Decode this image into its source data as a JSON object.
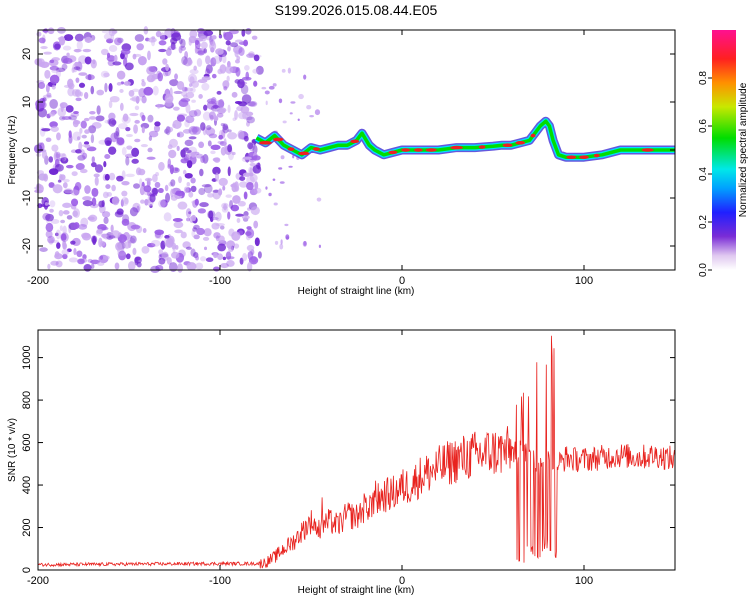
{
  "page_title": "S199.2026.015.08.44.E05",
  "colors": {
    "snr_line": "#e8221e",
    "noise": "#7a2cd6",
    "ridge_low": "#00e0ff",
    "ridge_mid": "#00dd00",
    "ridge_high": "#ee2020",
    "axis": "#000000"
  },
  "chart_data": [
    {
      "type": "heatmap",
      "title": "S199.2026.015.08.44.E05",
      "xlabel": "Height of straight line (km)",
      "ylabel": "Frequency (Hz)",
      "xlim": [
        -200,
        150
      ],
      "ylim": [
        -25,
        25
      ],
      "x_ticks": [
        -200,
        -100,
        0,
        100
      ],
      "x_tick_labels": [
        "-200",
        "-100",
        "0",
        "100"
      ],
      "y_ticks": [
        -20,
        -10,
        0,
        10,
        20
      ],
      "y_tick_labels": [
        "-20",
        "-10",
        "0",
        "10",
        "20"
      ],
      "noise_region_x": [
        -200,
        -78
      ],
      "ridge": {
        "x": [
          -80,
          -75,
          -70,
          -65,
          -60,
          -55,
          -50,
          -45,
          -40,
          -35,
          -30,
          -25,
          -22,
          -18,
          -15,
          -10,
          -5,
          0,
          10,
          20,
          30,
          40,
          50,
          55,
          60,
          65,
          70,
          73,
          76,
          79,
          81,
          83,
          86,
          90,
          95,
          100,
          110,
          120,
          130,
          140,
          150
        ],
        "y": [
          2.5,
          1.5,
          3,
          1,
          0,
          -1,
          0.5,
          0,
          0.5,
          1,
          1,
          2,
          3.5,
          1,
          0,
          -1,
          -0.5,
          0,
          0,
          0,
          0.5,
          0.5,
          0.8,
          1,
          1,
          1.5,
          2,
          3.5,
          5,
          6,
          5,
          2,
          -1,
          -1.5,
          -1.5,
          -1.5,
          -1,
          0,
          0,
          0,
          0
        ]
      },
      "ridge_peak_amplitude": 1.0,
      "colorbar": {
        "label": "Normalized spectral amplitude",
        "range": [
          0,
          1
        ],
        "ticks": [
          0.0,
          0.2,
          0.4,
          0.6,
          0.8
        ],
        "tick_labels": [
          "0.0",
          "0.2",
          "0.4",
          "0.6",
          "0.8"
        ]
      }
    },
    {
      "type": "line",
      "xlabel": "Height of straight line (km)",
      "ylabel": "SNR (10 * v/v)",
      "xlim": [
        -200,
        150
      ],
      "ylim": [
        0,
        1130
      ],
      "x_ticks": [
        -200,
        -100,
        0,
        100
      ],
      "x_tick_labels": [
        "-200",
        "-100",
        "0",
        "100"
      ],
      "y_ticks": [
        0,
        200,
        400,
        600,
        800,
        1000
      ],
      "y_tick_labels": [
        "0",
        "200",
        "400",
        "600",
        "800",
        "1000"
      ],
      "series": [
        {
          "name": "SNR",
          "x": [
            -200,
            -150,
            -100,
            -80,
            -75,
            -70,
            -65,
            -60,
            -55,
            -50,
            -45,
            -40,
            -35,
            -30,
            -25,
            -20,
            -15,
            -10,
            -5,
            0,
            5,
            10,
            15,
            20,
            25,
            30,
            35,
            40,
            50,
            60,
            65,
            68,
            70,
            72,
            74,
            76,
            78,
            80,
            82,
            85,
            88,
            90,
            95,
            100,
            110,
            120,
            130,
            140,
            150
          ],
          "values": [
            25,
            28,
            30,
            30,
            35,
            60,
            100,
            130,
            180,
            230,
            190,
            230,
            210,
            260,
            250,
            300,
            320,
            350,
            360,
            390,
            400,
            440,
            460,
            480,
            500,
            520,
            530,
            540,
            555,
            560,
            560,
            560,
            600,
            520,
            480,
            500,
            530,
            560,
            520,
            500,
            510,
            530,
            520,
            520,
            530,
            540,
            530,
            540,
            520
          ]
        }
      ],
      "spike_annotations": {
        "near_x": [
          -45,
          -15,
          65,
          70,
          75,
          78,
          80,
          83
        ],
        "peaks": [
          430,
          430,
          920,
          1020,
          1060,
          1100,
          980,
          1120
        ],
        "troughs": [
          null,
          null,
          40,
          80,
          60,
          100,
          120,
          70
        ]
      }
    }
  ]
}
